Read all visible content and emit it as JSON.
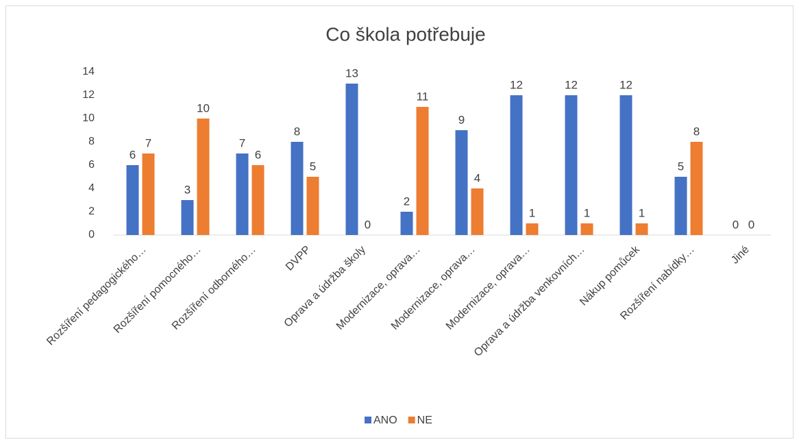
{
  "chart_data": {
    "type": "bar",
    "title": "Co škola potřebuje",
    "categories": [
      "Rozšíření pedagogického…",
      "Rozšíření pomocného…",
      "Rozšíření odborného…",
      "DVPP",
      "Oprava a údržba školy",
      "Modernizace, oprava…",
      "Modernizace, oprava…",
      "Modernizace, oprava…",
      "Oprava a údržba venkovních…",
      "Nákup pomůcek",
      "Rozšíření nabídky…",
      "Jiné"
    ],
    "series": [
      {
        "name": "ANO",
        "color": "#4472c4",
        "values": [
          6,
          3,
          7,
          8,
          13,
          2,
          9,
          12,
          12,
          12,
          5,
          0
        ]
      },
      {
        "name": "NE",
        "color": "#ed7d31",
        "values": [
          7,
          10,
          6,
          5,
          0,
          11,
          4,
          1,
          1,
          1,
          8,
          0
        ]
      }
    ],
    "ylim": [
      0,
      14
    ],
    "yticks": [
      0,
      2,
      4,
      6,
      8,
      10,
      12,
      14
    ],
    "grid": false,
    "legend": "bottom"
  }
}
